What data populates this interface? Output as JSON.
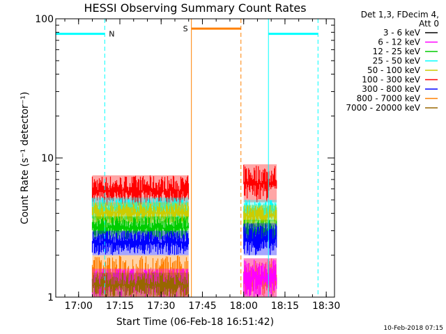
{
  "chart_data": {
    "type": "line",
    "title": "HESSI Observing Summary Count Rates",
    "xlabel": "Start Time (06-Feb-18 16:51:42)",
    "ylabel": "Count Rate (s⁻¹ detector⁻¹)",
    "yscale": "log",
    "ylim": [
      1,
      100
    ],
    "xlim": [
      "16:51:42",
      "18:33:00"
    ],
    "x_ticks": [
      "17:00",
      "17:15",
      "17:30",
      "17:45",
      "18:00",
      "18:15",
      "18:30"
    ],
    "y_ticks": [
      "1",
      "10",
      "100"
    ],
    "legend": {
      "placement": "right",
      "header": [
        "Det 1,3, FDecim 4,",
        "Att 0"
      ],
      "entries": [
        {
          "label": "3 - 6 keV",
          "color": "#000000"
        },
        {
          "label": "6 - 12 keV",
          "color": "#ff00ff"
        },
        {
          "label": "12 - 25 keV",
          "color": "#00cc00"
        },
        {
          "label": "25 - 50 keV",
          "color": "#00ffff"
        },
        {
          "label": "50 - 100 keV",
          "color": "#cccc00"
        },
        {
          "label": "100 - 300 keV",
          "color": "#ff0000"
        },
        {
          "label": "300 - 800 keV",
          "color": "#0000ff"
        },
        {
          "label": "800 - 7000 keV",
          "color": "#ff8000"
        },
        {
          "label": "7000 - 20000 keV",
          "color": "#996600"
        }
      ]
    },
    "series": [
      {
        "name": "100 - 300 keV",
        "color": "#ff0000",
        "segments": [
          {
            "start": "17:05",
            "end": "17:40",
            "low": 4.5,
            "high": 7.5
          },
          {
            "start": "18:00",
            "end": "18:12",
            "low": 4.8,
            "high": 9.0
          }
        ]
      },
      {
        "name": "25 - 50 keV",
        "color": "#00ffff",
        "segments": [
          {
            "start": "17:05",
            "end": "17:40",
            "low": 3.6,
            "high": 5.2
          },
          {
            "start": "18:00",
            "end": "18:12",
            "low": 3.5,
            "high": 5.0
          }
        ]
      },
      {
        "name": "50 - 100 keV",
        "color": "#cccc00",
        "segments": [
          {
            "start": "17:05",
            "end": "17:40",
            "low": 3.4,
            "high": 4.8
          },
          {
            "start": "18:00",
            "end": "18:12",
            "low": 3.2,
            "high": 4.6
          }
        ]
      },
      {
        "name": "12 - 25 keV",
        "color": "#00cc00",
        "segments": [
          {
            "start": "17:05",
            "end": "17:40",
            "low": 2.6,
            "high": 3.8
          },
          {
            "start": "18:00",
            "end": "18:12",
            "low": 2.5,
            "high": 3.6
          }
        ]
      },
      {
        "name": "300 - 800 keV",
        "color": "#0000ff",
        "segments": [
          {
            "start": "17:05",
            "end": "17:40",
            "low": 2.0,
            "high": 3.0
          },
          {
            "start": "18:00",
            "end": "18:12",
            "low": 2.0,
            "high": 3.4
          }
        ]
      },
      {
        "name": "800 - 7000 keV",
        "color": "#ff8000",
        "segments": [
          {
            "start": "17:05",
            "end": "17:40",
            "low": 1.0,
            "high": 2.0
          },
          {
            "start": "18:00",
            "end": "18:12",
            "low": 1.0,
            "high": 1.9
          }
        ]
      },
      {
        "name": "6 - 12 keV",
        "color": "#ff00ff",
        "segments": [
          {
            "start": "17:05",
            "end": "17:40",
            "low": 1.0,
            "high": 1.6
          },
          {
            "start": "18:00",
            "end": "18:12",
            "low": 1.0,
            "high": 1.9
          }
        ]
      },
      {
        "name": "7000 - 20000 keV",
        "color": "#996600",
        "segments": [
          {
            "start": "17:05",
            "end": "17:40",
            "low": 1.0,
            "high": 1.5
          }
        ]
      }
    ],
    "annotations": {
      "night_label": "N",
      "saa_label": "S",
      "night_intervals": [
        {
          "start": "16:51:42",
          "end": "17:09:30",
          "level": 78
        },
        {
          "start": "18:09:00",
          "end": "18:27:00",
          "level": 78
        }
      ],
      "saa_intervals": [
        {
          "start": "17:41:00",
          "end": "17:59:00",
          "level": 85
        }
      ]
    }
  },
  "footer": {
    "timestamp": "10-Feb-2018 07:15"
  }
}
